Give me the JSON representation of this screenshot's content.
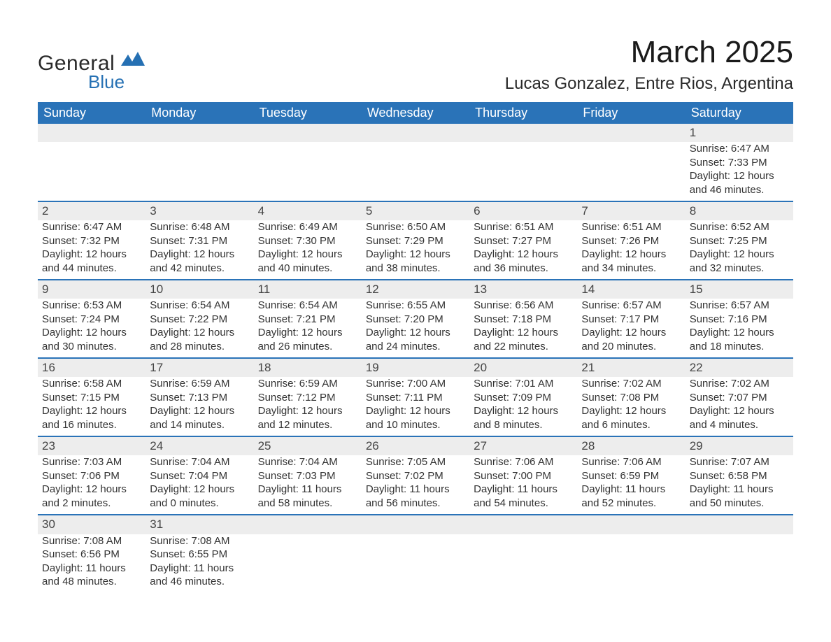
{
  "logo": {
    "text1": "General",
    "text2": "Blue",
    "brand_color": "#2570b3"
  },
  "title": {
    "month": "March 2025",
    "location": "Lucas Gonzalez, Entre Rios, Argentina"
  },
  "colors": {
    "header_bg": "#2a73b8",
    "header_text": "#ffffff",
    "daynum_bg": "#ededed",
    "row_divider": "#2a73b8",
    "body_text": "#333333",
    "page_bg": "#ffffff"
  },
  "typography": {
    "title_fontsize": 44,
    "location_fontsize": 24,
    "header_fontsize": 18,
    "cell_fontsize": 15
  },
  "layout": {
    "columns": 7,
    "week_rows": 6
  },
  "weekdays": [
    "Sunday",
    "Monday",
    "Tuesday",
    "Wednesday",
    "Thursday",
    "Friday",
    "Saturday"
  ],
  "weeks": [
    [
      null,
      null,
      null,
      null,
      null,
      null,
      {
        "n": "1",
        "sr": "Sunrise: 6:47 AM",
        "ss": "Sunset: 7:33 PM",
        "d1": "Daylight: 12 hours",
        "d2": "and 46 minutes."
      }
    ],
    [
      {
        "n": "2",
        "sr": "Sunrise: 6:47 AM",
        "ss": "Sunset: 7:32 PM",
        "d1": "Daylight: 12 hours",
        "d2": "and 44 minutes."
      },
      {
        "n": "3",
        "sr": "Sunrise: 6:48 AM",
        "ss": "Sunset: 7:31 PM",
        "d1": "Daylight: 12 hours",
        "d2": "and 42 minutes."
      },
      {
        "n": "4",
        "sr": "Sunrise: 6:49 AM",
        "ss": "Sunset: 7:30 PM",
        "d1": "Daylight: 12 hours",
        "d2": "and 40 minutes."
      },
      {
        "n": "5",
        "sr": "Sunrise: 6:50 AM",
        "ss": "Sunset: 7:29 PM",
        "d1": "Daylight: 12 hours",
        "d2": "and 38 minutes."
      },
      {
        "n": "6",
        "sr": "Sunrise: 6:51 AM",
        "ss": "Sunset: 7:27 PM",
        "d1": "Daylight: 12 hours",
        "d2": "and 36 minutes."
      },
      {
        "n": "7",
        "sr": "Sunrise: 6:51 AM",
        "ss": "Sunset: 7:26 PM",
        "d1": "Daylight: 12 hours",
        "d2": "and 34 minutes."
      },
      {
        "n": "8",
        "sr": "Sunrise: 6:52 AM",
        "ss": "Sunset: 7:25 PM",
        "d1": "Daylight: 12 hours",
        "d2": "and 32 minutes."
      }
    ],
    [
      {
        "n": "9",
        "sr": "Sunrise: 6:53 AM",
        "ss": "Sunset: 7:24 PM",
        "d1": "Daylight: 12 hours",
        "d2": "and 30 minutes."
      },
      {
        "n": "10",
        "sr": "Sunrise: 6:54 AM",
        "ss": "Sunset: 7:22 PM",
        "d1": "Daylight: 12 hours",
        "d2": "and 28 minutes."
      },
      {
        "n": "11",
        "sr": "Sunrise: 6:54 AM",
        "ss": "Sunset: 7:21 PM",
        "d1": "Daylight: 12 hours",
        "d2": "and 26 minutes."
      },
      {
        "n": "12",
        "sr": "Sunrise: 6:55 AM",
        "ss": "Sunset: 7:20 PM",
        "d1": "Daylight: 12 hours",
        "d2": "and 24 minutes."
      },
      {
        "n": "13",
        "sr": "Sunrise: 6:56 AM",
        "ss": "Sunset: 7:18 PM",
        "d1": "Daylight: 12 hours",
        "d2": "and 22 minutes."
      },
      {
        "n": "14",
        "sr": "Sunrise: 6:57 AM",
        "ss": "Sunset: 7:17 PM",
        "d1": "Daylight: 12 hours",
        "d2": "and 20 minutes."
      },
      {
        "n": "15",
        "sr": "Sunrise: 6:57 AM",
        "ss": "Sunset: 7:16 PM",
        "d1": "Daylight: 12 hours",
        "d2": "and 18 minutes."
      }
    ],
    [
      {
        "n": "16",
        "sr": "Sunrise: 6:58 AM",
        "ss": "Sunset: 7:15 PM",
        "d1": "Daylight: 12 hours",
        "d2": "and 16 minutes."
      },
      {
        "n": "17",
        "sr": "Sunrise: 6:59 AM",
        "ss": "Sunset: 7:13 PM",
        "d1": "Daylight: 12 hours",
        "d2": "and 14 minutes."
      },
      {
        "n": "18",
        "sr": "Sunrise: 6:59 AM",
        "ss": "Sunset: 7:12 PM",
        "d1": "Daylight: 12 hours",
        "d2": "and 12 minutes."
      },
      {
        "n": "19",
        "sr": "Sunrise: 7:00 AM",
        "ss": "Sunset: 7:11 PM",
        "d1": "Daylight: 12 hours",
        "d2": "and 10 minutes."
      },
      {
        "n": "20",
        "sr": "Sunrise: 7:01 AM",
        "ss": "Sunset: 7:09 PM",
        "d1": "Daylight: 12 hours",
        "d2": "and 8 minutes."
      },
      {
        "n": "21",
        "sr": "Sunrise: 7:02 AM",
        "ss": "Sunset: 7:08 PM",
        "d1": "Daylight: 12 hours",
        "d2": "and 6 minutes."
      },
      {
        "n": "22",
        "sr": "Sunrise: 7:02 AM",
        "ss": "Sunset: 7:07 PM",
        "d1": "Daylight: 12 hours",
        "d2": "and 4 minutes."
      }
    ],
    [
      {
        "n": "23",
        "sr": "Sunrise: 7:03 AM",
        "ss": "Sunset: 7:06 PM",
        "d1": "Daylight: 12 hours",
        "d2": "and 2 minutes."
      },
      {
        "n": "24",
        "sr": "Sunrise: 7:04 AM",
        "ss": "Sunset: 7:04 PM",
        "d1": "Daylight: 12 hours",
        "d2": "and 0 minutes."
      },
      {
        "n": "25",
        "sr": "Sunrise: 7:04 AM",
        "ss": "Sunset: 7:03 PM",
        "d1": "Daylight: 11 hours",
        "d2": "and 58 minutes."
      },
      {
        "n": "26",
        "sr": "Sunrise: 7:05 AM",
        "ss": "Sunset: 7:02 PM",
        "d1": "Daylight: 11 hours",
        "d2": "and 56 minutes."
      },
      {
        "n": "27",
        "sr": "Sunrise: 7:06 AM",
        "ss": "Sunset: 7:00 PM",
        "d1": "Daylight: 11 hours",
        "d2": "and 54 minutes."
      },
      {
        "n": "28",
        "sr": "Sunrise: 7:06 AM",
        "ss": "Sunset: 6:59 PM",
        "d1": "Daylight: 11 hours",
        "d2": "and 52 minutes."
      },
      {
        "n": "29",
        "sr": "Sunrise: 7:07 AM",
        "ss": "Sunset: 6:58 PM",
        "d1": "Daylight: 11 hours",
        "d2": "and 50 minutes."
      }
    ],
    [
      {
        "n": "30",
        "sr": "Sunrise: 7:08 AM",
        "ss": "Sunset: 6:56 PM",
        "d1": "Daylight: 11 hours",
        "d2": "and 48 minutes."
      },
      {
        "n": "31",
        "sr": "Sunrise: 7:08 AM",
        "ss": "Sunset: 6:55 PM",
        "d1": "Daylight: 11 hours",
        "d2": "and 46 minutes."
      },
      null,
      null,
      null,
      null,
      null
    ]
  ]
}
